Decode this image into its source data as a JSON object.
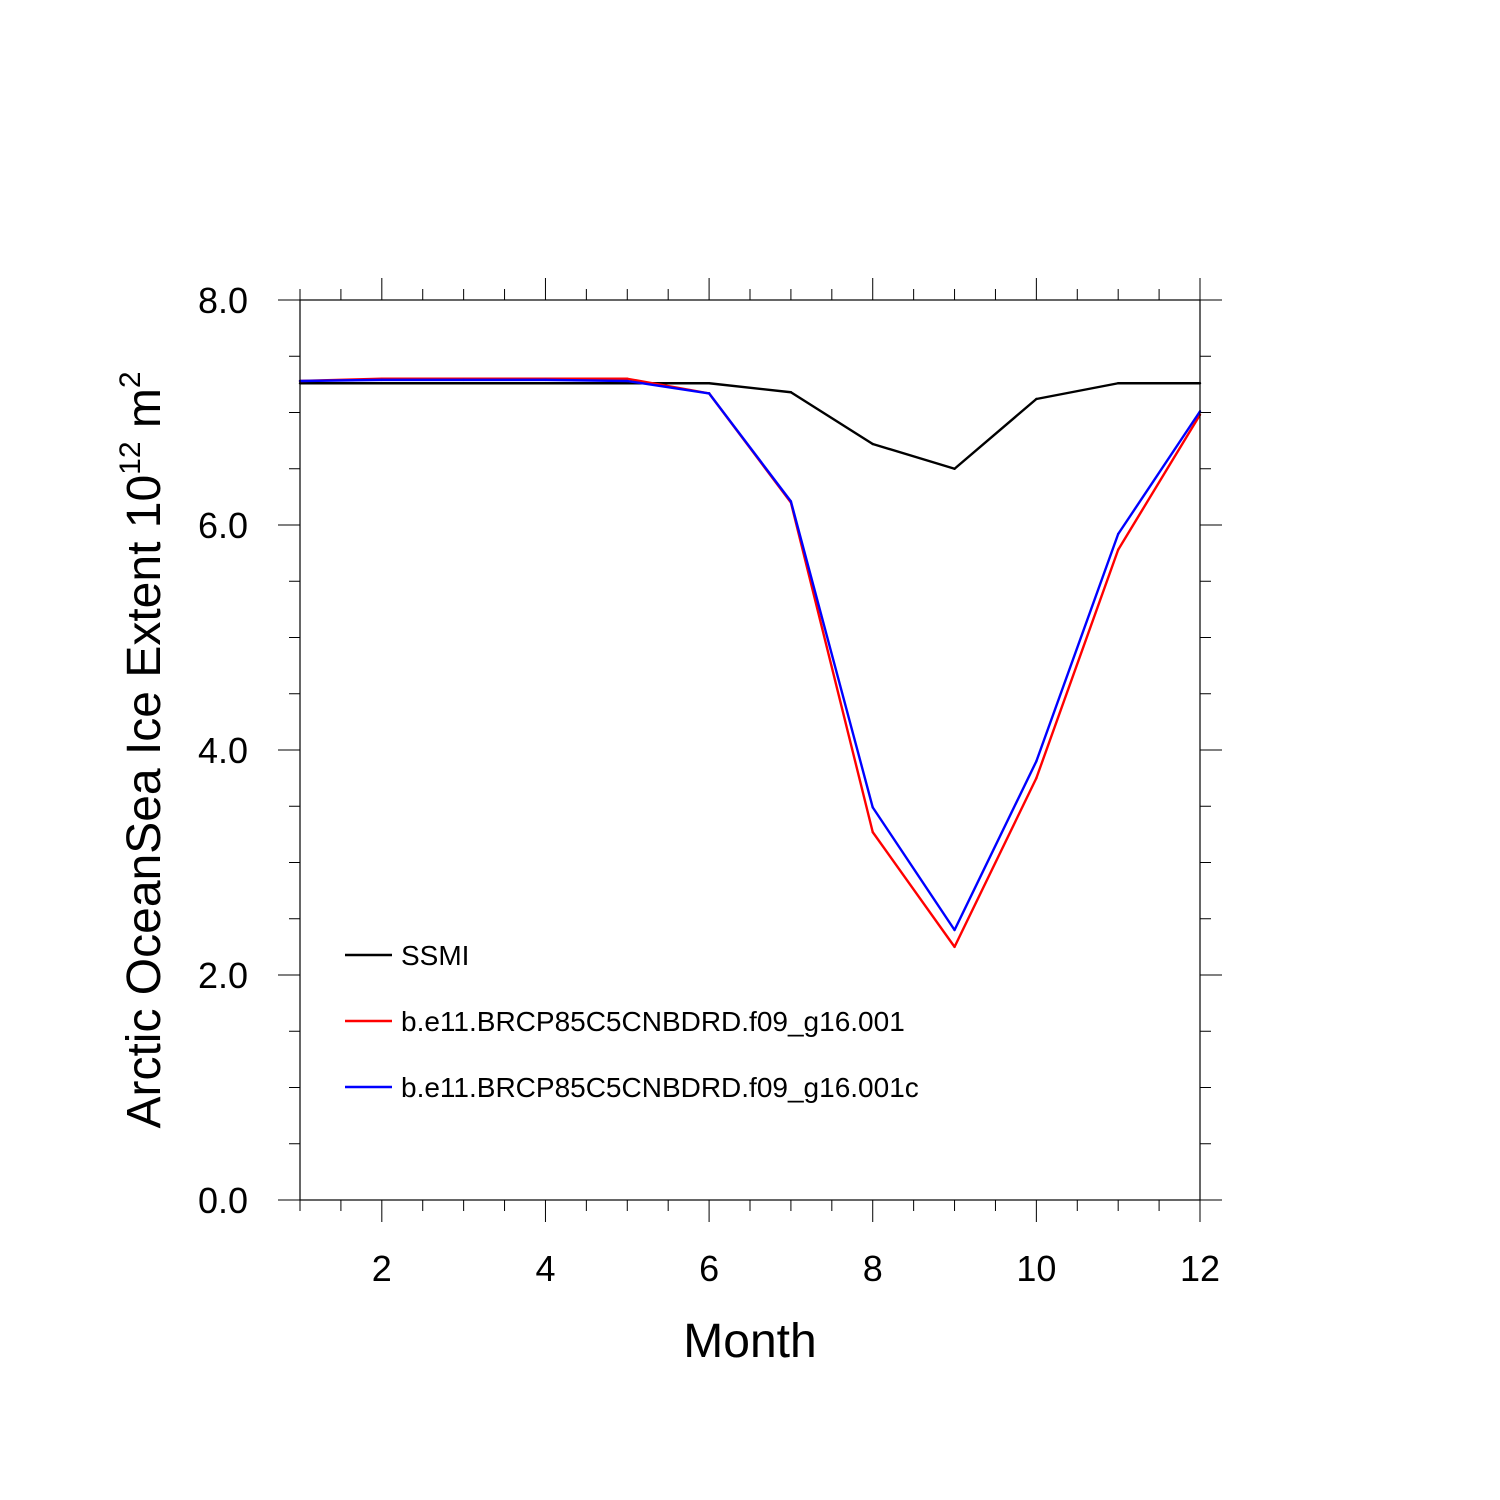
{
  "chart_data": {
    "type": "line",
    "title": "",
    "xlabel": "Month",
    "ylabel": "Arctic OceanSea Ice Extent 10",
    "ylabel_unit": "m",
    "ylabel_exp": "12",
    "ylabel_unit_exp": "2",
    "xlim": [
      1,
      12
    ],
    "ylim": [
      0,
      8
    ],
    "x_ticks": [
      2,
      4,
      6,
      8,
      10,
      12
    ],
    "x_tick_labels": [
      "2",
      "4",
      "6",
      "8",
      "10",
      "12"
    ],
    "y_ticks": [
      0,
      2,
      4,
      6,
      8
    ],
    "y_tick_labels": [
      "0.0",
      "2.0",
      "4.0",
      "6.0",
      "8.0"
    ],
    "x": [
      1,
      2,
      3,
      4,
      5,
      6,
      7,
      8,
      9,
      10,
      11,
      12
    ],
    "grid": false,
    "legend_position": "bottom-left",
    "series": [
      {
        "name": "SSMI",
        "color": "#000000",
        "values": [
          7.26,
          7.26,
          7.26,
          7.26,
          7.26,
          7.26,
          7.18,
          6.72,
          6.5,
          7.12,
          7.26,
          7.26
        ]
      },
      {
        "name": "b.e11.BRCP85C5CNBDRD.f09_g16.001",
        "color": "#ff0000",
        "values": [
          7.28,
          7.3,
          7.3,
          7.3,
          7.3,
          7.17,
          6.2,
          3.27,
          2.25,
          3.75,
          5.78,
          6.98
        ]
      },
      {
        "name": "b.e11.BRCP85C5CNBDRD.f09_g16.001c",
        "color": "#0000ff",
        "values": [
          7.28,
          7.29,
          7.29,
          7.29,
          7.28,
          7.17,
          6.21,
          3.49,
          2.4,
          3.9,
          5.92,
          7.01
        ]
      }
    ]
  }
}
